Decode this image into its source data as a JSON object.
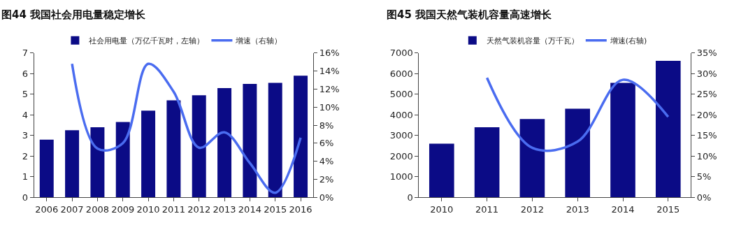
{
  "chart_data": [
    {
      "type": "bar",
      "title": "图44 我国社会用电量稳定增长",
      "categories": [
        "2006",
        "2007",
        "2008",
        "2009",
        "2010",
        "2011",
        "2012",
        "2013",
        "2014",
        "2015",
        "2016"
      ],
      "series": [
        {
          "name": "社会用电量（万亿千瓦时，左轴）",
          "color": "#0b0b86",
          "values": [
            2.8,
            3.25,
            3.4,
            3.65,
            4.2,
            4.7,
            4.95,
            5.3,
            5.5,
            5.55,
            5.9
          ]
        },
        {
          "name": "增速（右轴）",
          "type": "line",
          "axis": "y2",
          "color": "#4a6cf0",
          "values": [
            null,
            14.8,
            5.4,
            6.0,
            14.8,
            11.7,
            5.5,
            7.2,
            3.8,
            0.5,
            6.6
          ]
        }
      ],
      "ylim": [
        0,
        7
      ],
      "yticks": [
        0,
        1,
        2,
        3,
        4,
        5,
        6,
        7
      ],
      "y2lim": [
        0,
        16
      ],
      "y2ticks": [
        {
          "value": 0,
          "label": "0%"
        },
        {
          "value": 2,
          "label": "2%"
        },
        {
          "value": 4,
          "label": "4%"
        },
        {
          "value": 6,
          "label": "6%"
        },
        {
          "value": 8,
          "label": "8%"
        },
        {
          "value": 10,
          "label": "10%"
        },
        {
          "value": 12,
          "label": "12%"
        },
        {
          "value": 14,
          "label": "14%"
        },
        {
          "value": 16,
          "label": "16%"
        }
      ],
      "legend": "top"
    },
    {
      "type": "bar",
      "title": "图45 我国天然气装机容量高速增长",
      "categories": [
        "2010",
        "2011",
        "2012",
        "2013",
        "2014",
        "2015"
      ],
      "series": [
        {
          "name": "天然气装机容量（万千瓦）",
          "color": "#0b0b86",
          "values": [
            2600,
            3400,
            3800,
            4300,
            5550,
            6620
          ]
        },
        {
          "name": "增速(右轴)",
          "type": "line",
          "axis": "y2",
          "color": "#4a6cf0",
          "values": [
            null,
            29,
            12,
            13.5,
            28.5,
            19.5
          ]
        }
      ],
      "ylim": [
        0,
        7000
      ],
      "yticks": [
        0,
        1000,
        2000,
        3000,
        4000,
        5000,
        6000,
        7000
      ],
      "y2lim": [
        0,
        35
      ],
      "y2ticks": [
        {
          "value": 0,
          "label": "0%"
        },
        {
          "value": 5,
          "label": "5%"
        },
        {
          "value": 10,
          "label": "10%"
        },
        {
          "value": 15,
          "label": "15%"
        },
        {
          "value": 20,
          "label": "20%"
        },
        {
          "value": 25,
          "label": "25%"
        },
        {
          "value": 30,
          "label": "30%"
        },
        {
          "value": 35,
          "label": "35%"
        }
      ],
      "legend": "top"
    }
  ]
}
